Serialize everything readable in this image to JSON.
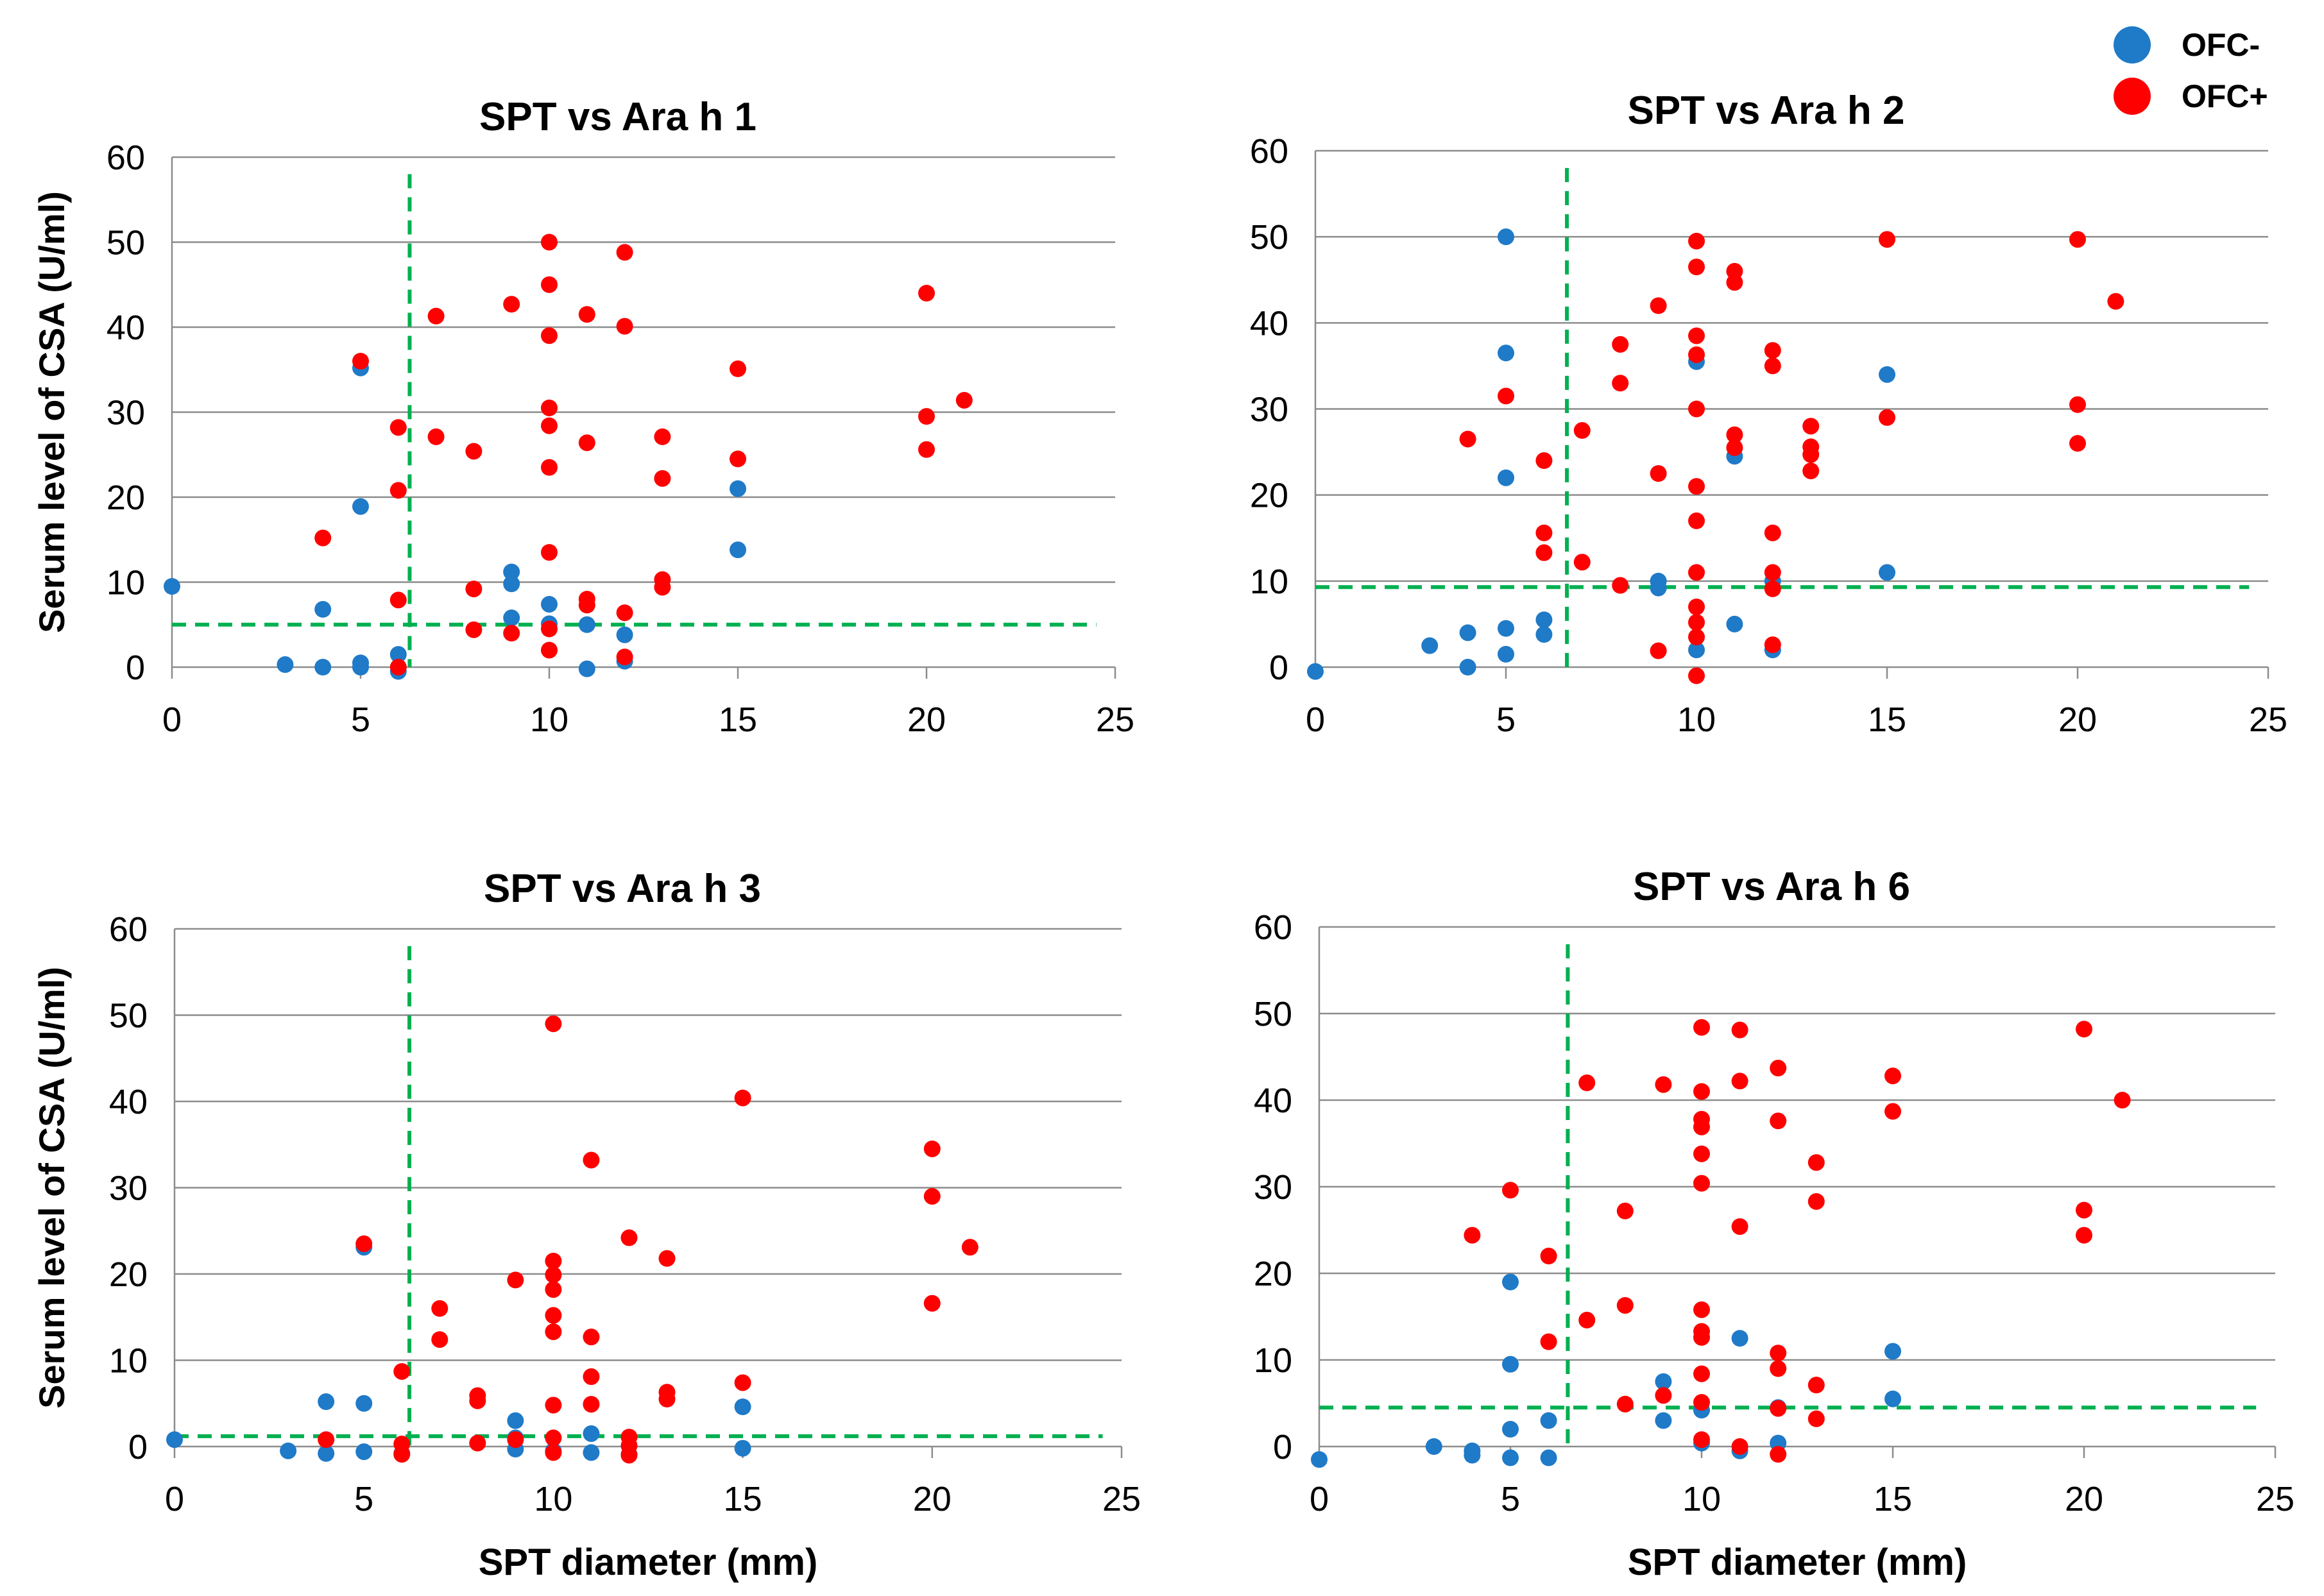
{
  "legend": [
    {
      "label": "OFC-",
      "color": "#1f7ac8"
    },
    {
      "label": "OFC+",
      "color": "#ff0000"
    }
  ],
  "colors": {
    "neg": "#1f7ac8",
    "pos": "#ff0000",
    "cutoff": "#00b050",
    "grid": "#8c8c8c"
  },
  "chart_data": [
    {
      "type": "scatter",
      "title": "SPT vs Ara h 1",
      "xlabel": "",
      "ylabel": "Serum level of CSA (U/ml)",
      "xlim": [
        0,
        25
      ],
      "ylim": [
        0,
        60
      ],
      "xticks": [
        "0",
        "5",
        "10",
        "15",
        "20",
        "25"
      ],
      "yticks": [
        "0",
        "10",
        "20",
        "30",
        "40",
        "50",
        "60"
      ],
      "grid": "horizontal",
      "cutoff": {
        "x": 6.3,
        "y": 5.0
      },
      "series": [
        {
          "name": "OFC-",
          "points": [
            [
              0,
              9.5
            ],
            [
              3,
              0.3
            ],
            [
              4,
              0
            ],
            [
              4,
              6.8
            ],
            [
              5,
              0
            ],
            [
              5,
              0.5
            ],
            [
              5,
              18.9
            ],
            [
              5,
              35.2
            ],
            [
              6,
              1.5
            ],
            [
              6,
              -0.5
            ],
            [
              9,
              11.2
            ],
            [
              9,
              9.8
            ],
            [
              9,
              5.8
            ],
            [
              10,
              7.4
            ],
            [
              10,
              5.1
            ],
            [
              11,
              -0.2
            ],
            [
              11,
              5
            ],
            [
              12,
              3.8
            ],
            [
              12,
              0.7
            ],
            [
              15,
              21
            ],
            [
              15,
              13.8
            ]
          ]
        },
        {
          "name": "OFC+",
          "points": [
            [
              4,
              15.2
            ],
            [
              5,
              36
            ],
            [
              6,
              28.2
            ],
            [
              6,
              20.8
            ],
            [
              6,
              7.9
            ],
            [
              6,
              0
            ],
            [
              7,
              41.3
            ],
            [
              7,
              27.1
            ],
            [
              8,
              25.4
            ],
            [
              8,
              9.2
            ],
            [
              8,
              4.4
            ],
            [
              9,
              42.7
            ],
            [
              9,
              4
            ],
            [
              10,
              50
            ],
            [
              10,
              45
            ],
            [
              10,
              39
            ],
            [
              10,
              30.5
            ],
            [
              10,
              28.4
            ],
            [
              10,
              23.5
            ],
            [
              10,
              13.5
            ],
            [
              10,
              4.5
            ],
            [
              10,
              2
            ],
            [
              11,
              41.5
            ],
            [
              11,
              26.4
            ],
            [
              11,
              8
            ],
            [
              11,
              7.3
            ],
            [
              12,
              48.8
            ],
            [
              12,
              40.1
            ],
            [
              12,
              6.4
            ],
            [
              12,
              1.2
            ],
            [
              13,
              27.1
            ],
            [
              13,
              22.2
            ],
            [
              13,
              10.3
            ],
            [
              13,
              9.4
            ],
            [
              15,
              35.1
            ],
            [
              15,
              24.5
            ],
            [
              20,
              44
            ],
            [
              20,
              29.5
            ],
            [
              20,
              25.6
            ],
            [
              21,
              31.4
            ]
          ]
        }
      ]
    },
    {
      "type": "scatter",
      "title": "SPT vs Ara h 2",
      "xlabel": "",
      "ylabel": "",
      "xlim": [
        0,
        25
      ],
      "ylim": [
        0,
        60
      ],
      "xticks": [
        "0",
        "5",
        "10",
        "15",
        "20",
        "25"
      ],
      "yticks": [
        "0",
        "10",
        "20",
        "30",
        "40",
        "50",
        "60"
      ],
      "grid": "horizontal",
      "cutoff": {
        "x": 6.6,
        "y": 9.3
      },
      "series": [
        {
          "name": "OFC-",
          "points": [
            [
              0,
              -0.5
            ],
            [
              3,
              2.5
            ],
            [
              4,
              4
            ],
            [
              4,
              0
            ],
            [
              5,
              50
            ],
            [
              5,
              36.5
            ],
            [
              5,
              22
            ],
            [
              5,
              4.5
            ],
            [
              5,
              1.5
            ],
            [
              6,
              5.5
            ],
            [
              6,
              3.8
            ],
            [
              9,
              10
            ],
            [
              9,
              9.2
            ],
            [
              10,
              35.5
            ],
            [
              10,
              2
            ],
            [
              11,
              24.5
            ],
            [
              11,
              5
            ],
            [
              12,
              10
            ],
            [
              12,
              2
            ],
            [
              15,
              34
            ],
            [
              15,
              11
            ]
          ]
        },
        {
          "name": "OFC+",
          "points": [
            [
              4,
              26.5
            ],
            [
              5,
              31.5
            ],
            [
              6,
              24
            ],
            [
              6,
              15.6
            ],
            [
              6,
              13.3
            ],
            [
              7,
              27.5
            ],
            [
              7,
              12.2
            ],
            [
              8,
              37.5
            ],
            [
              8,
              33
            ],
            [
              8,
              9.5
            ],
            [
              9,
              42
            ],
            [
              9,
              22.5
            ],
            [
              9,
              1.9
            ],
            [
              10,
              49.5
            ],
            [
              10,
              46.5
            ],
            [
              10,
              38.5
            ],
            [
              10,
              36.3
            ],
            [
              10,
              30
            ],
            [
              10,
              21
            ],
            [
              10,
              17
            ],
            [
              10,
              11
            ],
            [
              10,
              7
            ],
            [
              10,
              5.2
            ],
            [
              10,
              3.5
            ],
            [
              10,
              -1
            ],
            [
              11,
              46
            ],
            [
              11,
              44.7
            ],
            [
              11,
              27
            ],
            [
              11,
              25.5
            ],
            [
              12,
              36.8
            ],
            [
              12,
              35
            ],
            [
              12,
              15.6
            ],
            [
              12,
              11
            ],
            [
              12,
              9.1
            ],
            [
              12,
              2.6
            ],
            [
              13,
              28
            ],
            [
              13,
              25.6
            ],
            [
              13,
              24.7
            ],
            [
              13,
              22.8
            ],
            [
              15,
              49.7
            ],
            [
              15,
              29
            ],
            [
              20,
              49.7
            ],
            [
              20,
              30.5
            ],
            [
              20,
              26
            ],
            [
              21,
              42.5
            ]
          ]
        }
      ]
    },
    {
      "type": "scatter",
      "title": "SPT vs Ara h 3",
      "xlabel": "SPT diameter (mm)",
      "ylabel": "Serum level of CSA (U/ml)",
      "xlim": [
        0,
        25
      ],
      "ylim": [
        0,
        60
      ],
      "xticks": [
        "0",
        "5",
        "10",
        "15",
        "20",
        "25"
      ],
      "yticks": [
        "0",
        "10",
        "20",
        "30",
        "40",
        "50",
        "60"
      ],
      "grid": "horizontal",
      "cutoff": {
        "x": 6.2,
        "y": 1.2
      },
      "series": [
        {
          "name": "OFC-",
          "points": [
            [
              0,
              0.8
            ],
            [
              3,
              -0.5
            ],
            [
              4,
              5.2
            ],
            [
              4,
              -0.8
            ],
            [
              5,
              23.1
            ],
            [
              5,
              5
            ],
            [
              5,
              -0.6
            ],
            [
              6,
              -0.8
            ],
            [
              9,
              3
            ],
            [
              9,
              1
            ],
            [
              9,
              -0.3
            ],
            [
              10,
              -0.5
            ],
            [
              11,
              1.5
            ],
            [
              11,
              -0.7
            ],
            [
              12,
              -0.9
            ],
            [
              15,
              4.6
            ],
            [
              15,
              -0.2
            ]
          ]
        },
        {
          "name": "OFC+",
          "points": [
            [
              4,
              0.8
            ],
            [
              5,
              23.5
            ],
            [
              6,
              8.7
            ],
            [
              6,
              0.3
            ],
            [
              6,
              -0.9
            ],
            [
              7,
              16
            ],
            [
              7,
              12.4
            ],
            [
              8,
              5.9
            ],
            [
              8,
              5.3
            ],
            [
              8,
              0.4
            ],
            [
              9,
              19.3
            ],
            [
              9,
              0.8
            ],
            [
              10,
              49
            ],
            [
              10,
              21.5
            ],
            [
              10,
              19.9
            ],
            [
              10,
              18.2
            ],
            [
              10,
              15.2
            ],
            [
              10,
              13.3
            ],
            [
              10,
              4.8
            ],
            [
              10,
              1
            ],
            [
              10,
              -0.7
            ],
            [
              11,
              33.2
            ],
            [
              11,
              12.7
            ],
            [
              11,
              8.1
            ],
            [
              11,
              4.9
            ],
            [
              12,
              24.2
            ],
            [
              12,
              1.1
            ],
            [
              12,
              0.1
            ],
            [
              12,
              -1
            ],
            [
              13,
              21.8
            ],
            [
              13,
              6.3
            ],
            [
              13,
              5.5
            ],
            [
              15,
              40.4
            ],
            [
              15,
              7.4
            ],
            [
              20,
              34.5
            ],
            [
              20,
              29
            ],
            [
              20,
              16.6
            ],
            [
              21,
              23.1
            ]
          ]
        }
      ]
    },
    {
      "type": "scatter",
      "title": "SPT vs Ara h 6",
      "xlabel": "SPT diameter (mm)",
      "ylabel": "",
      "xlim": [
        0,
        25
      ],
      "ylim": [
        0,
        60
      ],
      "xticks": [
        "0",
        "5",
        "10",
        "15",
        "20",
        "25"
      ],
      "yticks": [
        "0",
        "10",
        "20",
        "30",
        "40",
        "50",
        "60"
      ],
      "grid": "horizontal",
      "cutoff": {
        "x": 6.5,
        "y": 4.5
      },
      "series": [
        {
          "name": "OFC-",
          "points": [
            [
              0,
              -1.5
            ],
            [
              3,
              0
            ],
            [
              4,
              -0.5
            ],
            [
              4,
              -1
            ],
            [
              5,
              19
            ],
            [
              5,
              9.5
            ],
            [
              5,
              2
            ],
            [
              5,
              -1.3
            ],
            [
              6,
              3
            ],
            [
              6,
              -1.3
            ],
            [
              9,
              7.5
            ],
            [
              9,
              3
            ],
            [
              10,
              4.2
            ],
            [
              10,
              0.4
            ],
            [
              11,
              12.5
            ],
            [
              11,
              -0.5
            ],
            [
              12,
              4.5
            ],
            [
              12,
              0.4
            ],
            [
              15,
              11
            ],
            [
              15,
              5.5
            ]
          ]
        },
        {
          "name": "OFC+",
          "points": [
            [
              4,
              24.4
            ],
            [
              5,
              29.6
            ],
            [
              6,
              22
            ],
            [
              6,
              12.1
            ],
            [
              7,
              42
            ],
            [
              7,
              14.6
            ],
            [
              8,
              27.2
            ],
            [
              8,
              16.3
            ],
            [
              8,
              4.9
            ],
            [
              9,
              41.8
            ],
            [
              9,
              5.9
            ],
            [
              10,
              48.4
            ],
            [
              10,
              41
            ],
            [
              10,
              37.8
            ],
            [
              10,
              36.9
            ],
            [
              10,
              33.8
            ],
            [
              10,
              30.4
            ],
            [
              10,
              15.8
            ],
            [
              10,
              13.3
            ],
            [
              10,
              12.6
            ],
            [
              10,
              8.4
            ],
            [
              10,
              5.1
            ],
            [
              10,
              0.8
            ],
            [
              11,
              48.1
            ],
            [
              11,
              42.2
            ],
            [
              11,
              25.4
            ],
            [
              11,
              0
            ],
            [
              12,
              43.7
            ],
            [
              12,
              37.6
            ],
            [
              12,
              10.8
            ],
            [
              12,
              9
            ],
            [
              12,
              4.4
            ],
            [
              12,
              -0.9
            ],
            [
              13,
              32.8
            ],
            [
              13,
              28.3
            ],
            [
              13,
              7.1
            ],
            [
              13,
              3.2
            ],
            [
              15,
              42.8
            ],
            [
              15,
              38.7
            ],
            [
              20,
              48.2
            ],
            [
              20,
              27.3
            ],
            [
              20,
              24.4
            ],
            [
              21,
              40
            ]
          ]
        }
      ]
    }
  ]
}
